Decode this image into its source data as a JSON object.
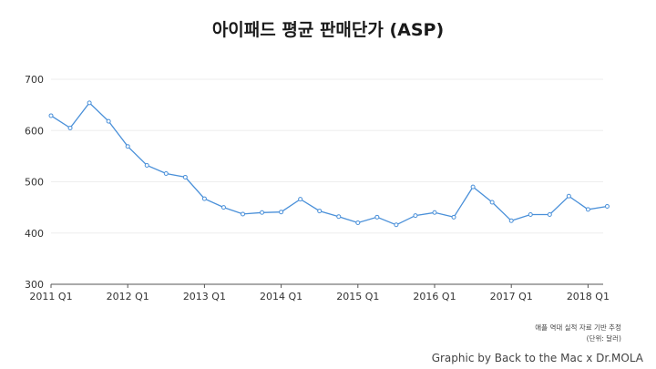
{
  "chart_data": {
    "type": "line",
    "title": "아이패드 평균 판매단가 (ASP)",
    "xlabel": "",
    "ylabel": "",
    "ylim": [
      300,
      700
    ],
    "y_ticks": [
      300,
      400,
      500,
      600,
      700
    ],
    "x_tick_labels": [
      "2011 Q1",
      "2012 Q1",
      "2013 Q1",
      "2014 Q1",
      "2015 Q1",
      "2016 Q1",
      "2017 Q1",
      "2018 Q1"
    ],
    "x": [
      "2011 Q1",
      "2011 Q2",
      "2011 Q3",
      "2011 Q4",
      "2012 Q1",
      "2012 Q2",
      "2012 Q3",
      "2012 Q4",
      "2013 Q1",
      "2013 Q2",
      "2013 Q3",
      "2013 Q4",
      "2014 Q1",
      "2014 Q2",
      "2014 Q3",
      "2014 Q4",
      "2015 Q1",
      "2015 Q2",
      "2015 Q3",
      "2015 Q4",
      "2016 Q1",
      "2016 Q2",
      "2016 Q3",
      "2016 Q4",
      "2017 Q1",
      "2017 Q2",
      "2017 Q3",
      "2017 Q4",
      "2018 Q1",
      "2018 Q2"
    ],
    "series": [
      {
        "values": [
          629,
          605,
          654,
          618,
          569,
          532,
          516,
          509,
          467,
          450,
          437,
          440,
          441,
          466,
          443,
          432,
          420,
          431,
          416,
          434,
          440,
          431,
          490,
          460,
          424,
          436,
          436,
          472,
          446,
          452
        ],
        "color": "#4a90d9"
      }
    ],
    "grid": true,
    "legend": "none",
    "gridline_color": "#eeeeee",
    "axis_color": "#555555"
  },
  "annotations": {
    "source_line1": "애플 역대 실적 자료 기반 추정",
    "source_line2": "(단위: 달러)",
    "credit": "Graphic by Back to the Mac x Dr.MOLA"
  }
}
